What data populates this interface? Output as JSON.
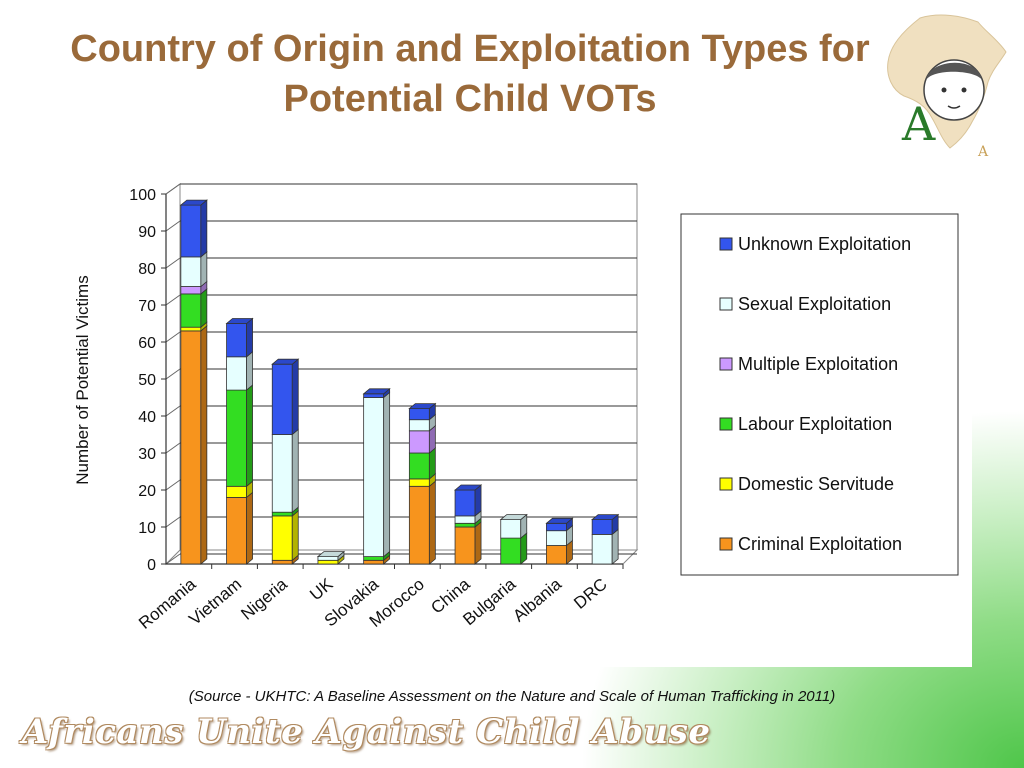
{
  "slide": {
    "title": "Country of Origin and Exploitation Types for Potential Child VOTs",
    "source": "(Source - UKHTC: A Baseline Assessment on the Nature and Scale of Human Trafficking in 2011)",
    "footer": "Africans Unite Against Child Abuse",
    "logo_letter": "A"
  },
  "colors": {
    "title": "#9a6a3a",
    "Criminal Exploitation": "#f7941d",
    "Domestic Servitude": "#ffff00",
    "Labour Exploitation": "#33dd22",
    "Multiple Exploitation": "#cc99ff",
    "Sexual Exploitation": "#e6ffff",
    "Unknown Exploitation": "#3355ee"
  },
  "chart_data": {
    "type": "bar",
    "stacked": true,
    "categories": [
      "Romania",
      "Vietnam",
      "Nigeria",
      "UK",
      "Slovakia",
      "Morocco",
      "China",
      "Bulgaria",
      "Albania",
      "DRC"
    ],
    "series": [
      {
        "name": "Criminal Exploitation",
        "values": [
          63,
          18,
          1,
          0,
          1,
          21,
          10,
          0,
          5,
          0
        ]
      },
      {
        "name": "Domestic Servitude",
        "values": [
          1,
          3,
          12,
          1,
          0,
          2,
          0,
          0,
          0,
          0
        ]
      },
      {
        "name": "Labour Exploitation",
        "values": [
          9,
          26,
          1,
          0,
          1,
          7,
          1,
          7,
          0,
          0
        ]
      },
      {
        "name": "Multiple Exploitation",
        "values": [
          2,
          0,
          0,
          0,
          0,
          6,
          0,
          0,
          0,
          0
        ]
      },
      {
        "name": "Sexual Exploitation",
        "values": [
          8,
          9,
          21,
          1,
          43,
          3,
          2,
          5,
          4,
          8
        ]
      },
      {
        "name": "Unknown Exploitation",
        "values": [
          14,
          9,
          19,
          0,
          1,
          3,
          7,
          0,
          2,
          4
        ]
      }
    ],
    "legend_order": [
      "Unknown Exploitation",
      "Sexual Exploitation",
      "Multiple Exploitation",
      "Labour Exploitation",
      "Domestic Servitude",
      "Criminal Exploitation"
    ],
    "ylabel": "Number of Potential Victims",
    "xlabel": "",
    "ylim": [
      0,
      100
    ],
    "yticks": [
      0,
      10,
      20,
      30,
      40,
      50,
      60,
      70,
      80,
      90,
      100
    ],
    "grid": true,
    "legend_position": "right"
  }
}
